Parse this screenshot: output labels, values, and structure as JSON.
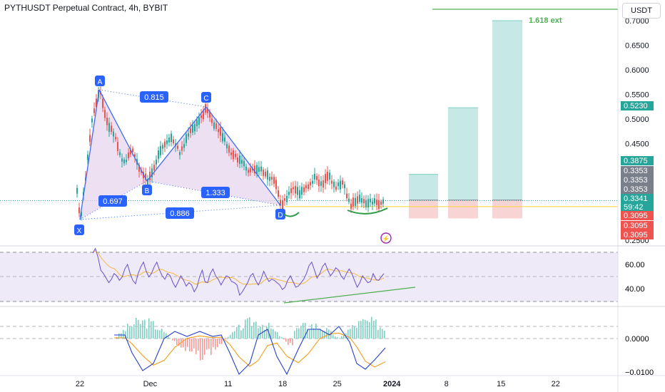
{
  "header": {
    "title": "PYTHUSDT Perpetual Contract, 4h, BYBIT",
    "currency_label": "USDT"
  },
  "colors": {
    "up": "#26a69a",
    "down": "#ef5350",
    "pattern_line": "#3d6cf0",
    "pattern_fill": "#e6d3ee",
    "label_bg": "#2962ff",
    "target_fill": "#b9e4de",
    "stop_fill": "#f8cfcf",
    "rsi_line": "#6a4fc7",
    "rsi_ma": "#f4b940",
    "rsi_band": "#efeaf8",
    "macd_line": "#2740c8",
    "signal_line": "#f59c1a",
    "ext_line": "#4caf50"
  },
  "chart_data": [
    {
      "id": "price",
      "type": "candlestick",
      "y_ticks": [
        "0.7000",
        "0.6500",
        "0.6000",
        "0.5500",
        "0.5000",
        "0.4500",
        "0.2500"
      ],
      "x_ticks": [
        "22",
        "Dec",
        "11",
        "18",
        "25",
        "2024",
        "8",
        "15",
        "22"
      ],
      "price_labels": [
        {
          "text": "0.5230",
          "kind": "target"
        },
        {
          "text": "0.3875",
          "kind": "target"
        },
        {
          "text": "0.3353",
          "kind": "neutral"
        },
        {
          "text": "0.3353",
          "kind": "neutral"
        },
        {
          "text": "0.3353",
          "kind": "neutral"
        },
        {
          "text": "0.3341",
          "kind": "current"
        },
        {
          "text": "59:42",
          "kind": "countdown"
        },
        {
          "text": "0.3095",
          "kind": "stop"
        },
        {
          "text": "0.3095",
          "kind": "stop"
        },
        {
          "text": "0.3095",
          "kind": "stop"
        }
      ],
      "pattern_points": [
        {
          "label": "X",
          "value": 0.305
        },
        {
          "label": "A",
          "value": 0.555
        },
        {
          "label": "B",
          "value": 0.374
        },
        {
          "label": "C",
          "value": 0.525
        },
        {
          "label": "D",
          "value": 0.327
        }
      ],
      "ratios": [
        "0.815",
        "1.333",
        "0.697",
        "0.886"
      ],
      "extension_label": "1.618 ext",
      "targets": [
        0.3875,
        0.523,
        0.7
      ],
      "entry": 0.3353,
      "stop": 0.3095,
      "current_price": 0.3341
    },
    {
      "id": "rsi",
      "type": "line",
      "y_ticks": [
        "60.00",
        "40.00"
      ],
      "series": [
        {
          "values": [
            70,
            74,
            66,
            55,
            52,
            48,
            44,
            47,
            52,
            50,
            46,
            49,
            56,
            60,
            52,
            46,
            43,
            52,
            58,
            62,
            54,
            49,
            52,
            58,
            62,
            55,
            50,
            47,
            52,
            50,
            44,
            40,
            45,
            50,
            46,
            41,
            44,
            42,
            36,
            40,
            49,
            55,
            45,
            44,
            52,
            56,
            50,
            47,
            42,
            46,
            50,
            49,
            45,
            44,
            42,
            33,
            36,
            40,
            44,
            50,
            52,
            46,
            42,
            47,
            54,
            49,
            45,
            47,
            46,
            44,
            42,
            38,
            40,
            46,
            50,
            45,
            40,
            41,
            44,
            47,
            52,
            59,
            62,
            55,
            48,
            52,
            58,
            61,
            55,
            50,
            53,
            57,
            55,
            50,
            47,
            52,
            56,
            52,
            46,
            40,
            44,
            50,
            47,
            44,
            45,
            52,
            47,
            46,
            49,
            52
          ]
        }
      ]
    },
    {
      "id": "macd",
      "type": "histogram+line",
      "y_ticks": [
        "0.0000",
        "−0.0100"
      ]
    }
  ]
}
